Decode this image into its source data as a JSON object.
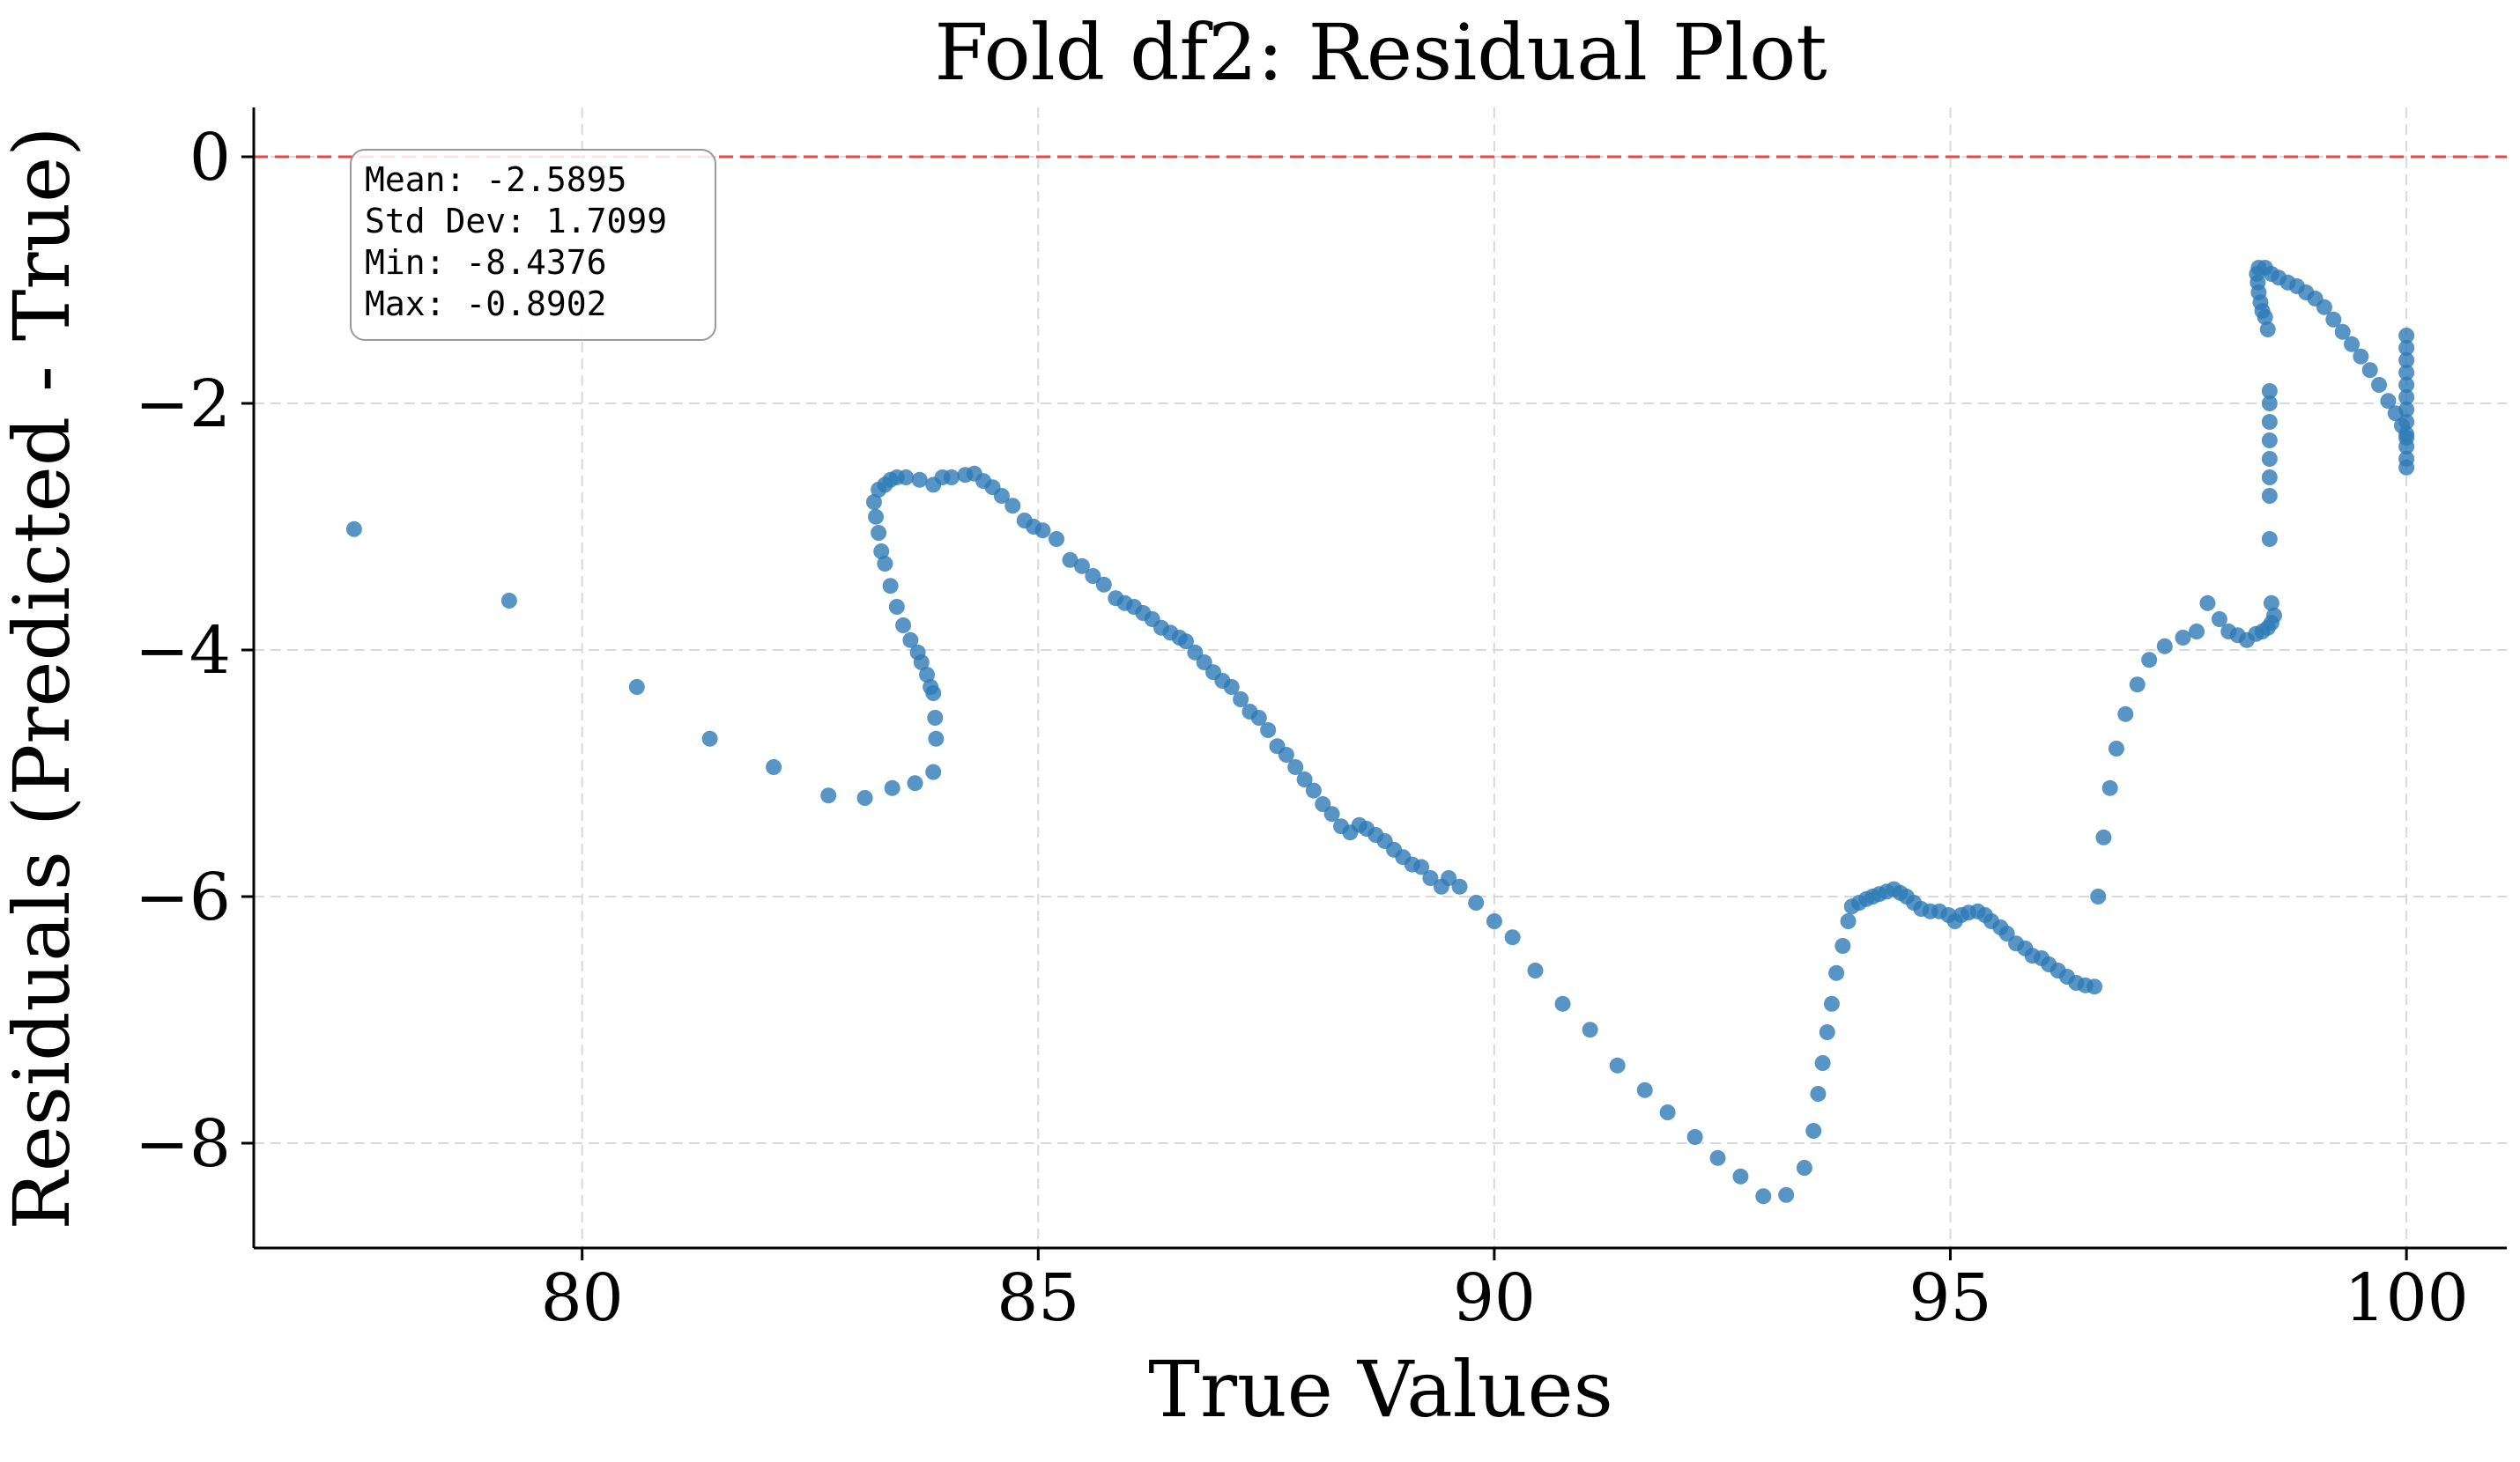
{
  "chart_data": {
    "type": "scatter",
    "title": "Fold df2: Residual Plot",
    "xlabel": "True Values",
    "ylabel": "Residuals (Predicted - True)",
    "xlim": [
      76.4,
      101.1
    ],
    "ylim": [
      -8.85,
      0.4
    ],
    "x_ticks": [
      80,
      85,
      90,
      95,
      100
    ],
    "y_ticks": [
      0,
      -2,
      -4,
      -6,
      -8
    ],
    "x_tick_labels": [
      "80",
      "85",
      "90",
      "95",
      "100"
    ],
    "y_tick_labels": [
      "0",
      "−2",
      "−4",
      "−6",
      "−8"
    ],
    "grid": true,
    "reference_line": {
      "y": 0,
      "color": "#e8474a",
      "style": "dashed"
    },
    "stats_box": {
      "mean": "Mean: -2.5895",
      "std": "Std Dev: 1.7099",
      "min": "Min: -8.4376",
      "max": "Max: -0.8902"
    },
    "point_color": "#2e7bb7",
    "series": [
      {
        "points": [
          [
            77.5,
            -3.02
          ],
          [
            79.2,
            -3.6
          ],
          [
            80.6,
            -4.3
          ],
          [
            81.4,
            -4.72
          ],
          [
            82.1,
            -4.95
          ],
          [
            82.7,
            -5.18
          ],
          [
            83.1,
            -5.2
          ],
          [
            83.4,
            -5.12
          ],
          [
            83.65,
            -5.08
          ],
          [
            83.85,
            -4.99
          ],
          [
            83.88,
            -4.72
          ],
          [
            83.87,
            -4.55
          ],
          [
            83.85,
            -4.35
          ],
          [
            83.82,
            -4.3
          ],
          [
            83.78,
            -4.2
          ],
          [
            83.72,
            -4.1
          ],
          [
            83.68,
            -4.02
          ],
          [
            83.6,
            -3.92
          ],
          [
            83.52,
            -3.8
          ],
          [
            83.45,
            -3.65
          ],
          [
            83.38,
            -3.48
          ],
          [
            83.32,
            -3.3
          ],
          [
            83.28,
            -3.2
          ],
          [
            83.25,
            -3.05
          ],
          [
            83.22,
            -2.92
          ],
          [
            83.2,
            -2.8
          ],
          [
            83.25,
            -2.7
          ],
          [
            83.32,
            -2.66
          ],
          [
            83.38,
            -2.62
          ],
          [
            83.45,
            -2.6
          ],
          [
            83.55,
            -2.6
          ],
          [
            83.7,
            -2.62
          ],
          [
            83.85,
            -2.66
          ],
          [
            83.95,
            -2.6
          ],
          [
            84.05,
            -2.6
          ],
          [
            84.2,
            -2.58
          ],
          [
            84.3,
            -2.57
          ],
          [
            84.4,
            -2.63
          ],
          [
            84.5,
            -2.68
          ],
          [
            84.6,
            -2.75
          ],
          [
            84.72,
            -2.83
          ],
          [
            84.85,
            -2.95
          ],
          [
            84.95,
            -3.0
          ],
          [
            85.05,
            -3.03
          ],
          [
            85.2,
            -3.1
          ],
          [
            85.35,
            -3.27
          ],
          [
            85.48,
            -3.32
          ],
          [
            85.6,
            -3.4
          ],
          [
            85.72,
            -3.47
          ],
          [
            85.85,
            -3.58
          ],
          [
            85.95,
            -3.62
          ],
          [
            86.05,
            -3.65
          ],
          [
            86.15,
            -3.7
          ],
          [
            86.25,
            -3.75
          ],
          [
            86.35,
            -3.82
          ],
          [
            86.45,
            -3.86
          ],
          [
            86.55,
            -3.9
          ],
          [
            86.62,
            -3.93
          ],
          [
            86.72,
            -4.02
          ],
          [
            86.82,
            -4.1
          ],
          [
            86.92,
            -4.18
          ],
          [
            87.02,
            -4.25
          ],
          [
            87.12,
            -4.3
          ],
          [
            87.22,
            -4.4
          ],
          [
            87.32,
            -4.5
          ],
          [
            87.42,
            -4.55
          ],
          [
            87.52,
            -4.65
          ],
          [
            87.62,
            -4.78
          ],
          [
            87.72,
            -4.85
          ],
          [
            87.82,
            -4.95
          ],
          [
            87.92,
            -5.05
          ],
          [
            88.02,
            -5.14
          ],
          [
            88.12,
            -5.25
          ],
          [
            88.22,
            -5.33
          ],
          [
            88.32,
            -5.43
          ],
          [
            88.42,
            -5.48
          ],
          [
            88.52,
            -5.42
          ],
          [
            88.6,
            -5.45
          ],
          [
            88.7,
            -5.5
          ],
          [
            88.8,
            -5.55
          ],
          [
            88.9,
            -5.62
          ],
          [
            89.0,
            -5.68
          ],
          [
            89.1,
            -5.74
          ],
          [
            89.2,
            -5.76
          ],
          [
            89.3,
            -5.85
          ],
          [
            89.42,
            -5.92
          ],
          [
            89.5,
            -5.85
          ],
          [
            89.62,
            -5.92
          ],
          [
            89.8,
            -6.05
          ],
          [
            90.0,
            -6.2
          ],
          [
            90.2,
            -6.33
          ],
          [
            90.45,
            -6.6
          ],
          [
            90.75,
            -6.87
          ],
          [
            91.05,
            -7.08
          ],
          [
            91.35,
            -7.37
          ],
          [
            91.65,
            -7.57
          ],
          [
            91.9,
            -7.75
          ],
          [
            92.2,
            -7.95
          ],
          [
            92.45,
            -8.12
          ],
          [
            92.7,
            -8.27
          ],
          [
            92.95,
            -8.43
          ],
          [
            93.2,
            -8.42
          ],
          [
            93.4,
            -8.2
          ],
          [
            93.5,
            -7.9
          ],
          [
            93.55,
            -7.6
          ],
          [
            93.6,
            -7.35
          ],
          [
            93.65,
            -7.1
          ],
          [
            93.7,
            -6.87
          ],
          [
            93.75,
            -6.62
          ],
          [
            93.82,
            -6.4
          ],
          [
            93.88,
            -6.2
          ],
          [
            93.92,
            -6.08
          ],
          [
            94.0,
            -6.05
          ],
          [
            94.08,
            -6.02
          ],
          [
            94.15,
            -6.0
          ],
          [
            94.22,
            -5.98
          ],
          [
            94.3,
            -5.96
          ],
          [
            94.38,
            -5.94
          ],
          [
            94.45,
            -5.97
          ],
          [
            94.52,
            -6.0
          ],
          [
            94.6,
            -6.05
          ],
          [
            94.68,
            -6.1
          ],
          [
            94.78,
            -6.12
          ],
          [
            94.88,
            -6.12
          ],
          [
            94.98,
            -6.15
          ],
          [
            95.05,
            -6.2
          ],
          [
            95.12,
            -6.15
          ],
          [
            95.2,
            -6.13
          ],
          [
            95.3,
            -6.12
          ],
          [
            95.38,
            -6.15
          ],
          [
            95.45,
            -6.2
          ],
          [
            95.55,
            -6.25
          ],
          [
            95.62,
            -6.3
          ],
          [
            95.72,
            -6.38
          ],
          [
            95.82,
            -6.42
          ],
          [
            95.9,
            -6.48
          ],
          [
            96.0,
            -6.5
          ],
          [
            96.08,
            -6.55
          ],
          [
            96.18,
            -6.6
          ],
          [
            96.28,
            -6.65
          ],
          [
            96.38,
            -6.7
          ],
          [
            96.48,
            -6.72
          ],
          [
            96.58,
            -6.73
          ],
          [
            96.62,
            -6.0
          ],
          [
            96.68,
            -5.52
          ],
          [
            96.75,
            -5.12
          ],
          [
            96.82,
            -4.8
          ],
          [
            96.92,
            -4.52
          ],
          [
            97.05,
            -4.28
          ],
          [
            97.18,
            -4.08
          ],
          [
            97.35,
            -3.97
          ],
          [
            97.55,
            -3.9
          ],
          [
            97.7,
            -3.85
          ],
          [
            97.82,
            -3.62
          ],
          [
            97.95,
            -3.75
          ],
          [
            98.05,
            -3.85
          ],
          [
            98.15,
            -3.88
          ],
          [
            98.25,
            -3.92
          ],
          [
            98.35,
            -3.87
          ],
          [
            98.42,
            -3.85
          ],
          [
            98.48,
            -3.82
          ],
          [
            98.52,
            -3.78
          ],
          [
            98.55,
            -3.72
          ],
          [
            98.52,
            -3.62
          ],
          [
            98.5,
            -3.1
          ],
          [
            98.5,
            -2.75
          ],
          [
            98.5,
            -2.6
          ],
          [
            98.5,
            -2.45
          ],
          [
            98.5,
            -2.3
          ],
          [
            98.5,
            -2.15
          ],
          [
            98.5,
            -2.0
          ],
          [
            98.5,
            -1.9
          ],
          [
            98.48,
            -1.4
          ],
          [
            98.45,
            -1.3
          ],
          [
            98.42,
            -1.25
          ],
          [
            98.4,
            -1.18
          ],
          [
            98.38,
            -1.1
          ],
          [
            98.37,
            -1.02
          ],
          [
            98.36,
            -0.95
          ],
          [
            98.38,
            -0.9
          ],
          [
            98.45,
            -0.9
          ],
          [
            98.52,
            -0.95
          ],
          [
            98.6,
            -0.98
          ],
          [
            98.7,
            -1.02
          ],
          [
            98.8,
            -1.05
          ],
          [
            98.9,
            -1.1
          ],
          [
            99.0,
            -1.15
          ],
          [
            99.1,
            -1.22
          ],
          [
            99.2,
            -1.32
          ],
          [
            99.3,
            -1.42
          ],
          [
            99.4,
            -1.52
          ],
          [
            99.5,
            -1.62
          ],
          [
            99.6,
            -1.73
          ],
          [
            99.7,
            -1.85
          ],
          [
            99.8,
            -1.98
          ],
          [
            99.88,
            -2.08
          ],
          [
            99.95,
            -2.18
          ],
          [
            100.0,
            -2.28
          ],
          [
            100.0,
            -1.45
          ],
          [
            100.0,
            -1.55
          ],
          [
            100.0,
            -1.65
          ],
          [
            100.0,
            -1.75
          ],
          [
            100.0,
            -1.85
          ],
          [
            100.0,
            -1.95
          ],
          [
            100.0,
            -2.05
          ],
          [
            100.0,
            -2.15
          ],
          [
            100.0,
            -2.25
          ],
          [
            100.0,
            -2.35
          ],
          [
            100.0,
            -2.45
          ],
          [
            100.0,
            -2.52
          ]
        ]
      }
    ]
  }
}
